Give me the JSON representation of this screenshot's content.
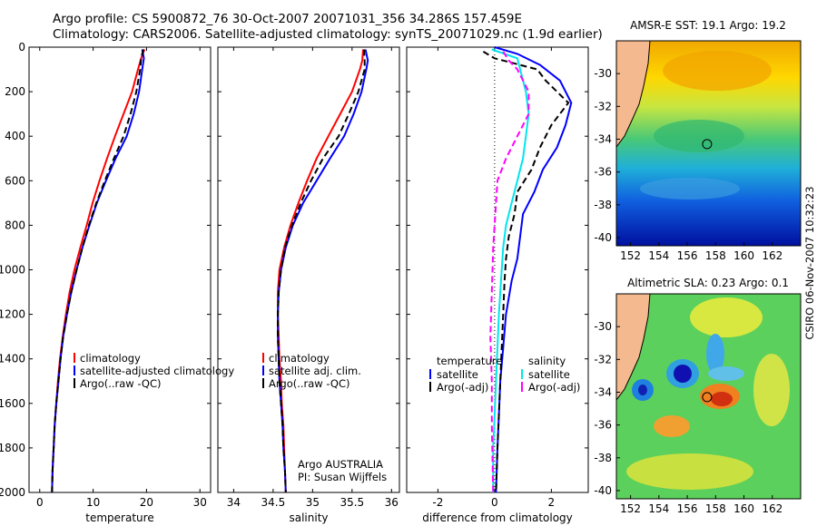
{
  "title_line1": "Argo profile: CS 5900872_76 30-Oct-2007 20071031_356 34.286S 157.459E",
  "title_line2": "Climatology: CARS2006. Satellite-adjusted climatology: synTS_20071029.nc (1.9d earlier)",
  "credit": "CSIRO 06-Nov-2007 10:32:23",
  "colors": {
    "climatology": "#ff0000",
    "satellite": "#0000ff",
    "argo": "#000000",
    "sal_satellite": "#00e5ee",
    "sal_argo": "#ff00ff",
    "land": "#f4b98e"
  },
  "chart_data": [
    {
      "type": "line",
      "xlabel": "temperature",
      "ylim": [
        2000,
        0
      ],
      "xlim": [
        -2,
        32
      ],
      "xticks": [
        "0",
        "10",
        "20",
        "30"
      ],
      "yticks": [
        "0",
        "200",
        "400",
        "600",
        "800",
        "1000",
        "1200",
        "1400",
        "1600",
        "1800",
        "2000"
      ],
      "legend": [
        "climatology",
        "satellite-adjusted climatology",
        "Argo(..raw -QC)"
      ],
      "series": [
        {
          "name": "climatology",
          "style": "solid",
          "color": "#ff0000",
          "points": [
            [
              19.6,
              10
            ],
            [
              19.0,
              50
            ],
            [
              18.4,
              100
            ],
            [
              17.3,
              200
            ],
            [
              15.7,
              300
            ],
            [
              14.1,
              400
            ],
            [
              12.6,
              500
            ],
            [
              11.2,
              600
            ],
            [
              9.9,
              700
            ],
            [
              8.8,
              800
            ],
            [
              7.6,
              900
            ],
            [
              6.5,
              1000
            ],
            [
              5.6,
              1100
            ],
            [
              4.9,
              1200
            ],
            [
              4.3,
              1300
            ],
            [
              3.8,
              1400
            ],
            [
              3.4,
              1500
            ],
            [
              3.1,
              1600
            ],
            [
              2.8,
              1700
            ],
            [
              2.6,
              1800
            ],
            [
              2.4,
              1900
            ],
            [
              2.3,
              2000
            ]
          ]
        },
        {
          "name": "satellite-adjusted climatology",
          "style": "solid",
          "color": "#0000ff",
          "points": [
            [
              19.2,
              10
            ],
            [
              19.5,
              50
            ],
            [
              19.2,
              100
            ],
            [
              18.6,
              200
            ],
            [
              17.6,
              300
            ],
            [
              16.3,
              400
            ],
            [
              14.2,
              500
            ],
            [
              12.4,
              600
            ],
            [
              10.7,
              700
            ],
            [
              9.3,
              800
            ],
            [
              8.0,
              900
            ],
            [
              6.9,
              1000
            ],
            [
              5.9,
              1100
            ],
            [
              5.1,
              1200
            ],
            [
              4.4,
              1300
            ],
            [
              3.9,
              1400
            ],
            [
              3.5,
              1500
            ],
            [
              3.1,
              1600
            ],
            [
              2.8,
              1700
            ],
            [
              2.6,
              1800
            ],
            [
              2.4,
              1900
            ],
            [
              2.3,
              2000
            ]
          ]
        },
        {
          "name": "Argo(..raw -QC)",
          "style": "dashed",
          "color": "#000000",
          "points": [
            [
              19.4,
              10
            ],
            [
              19.0,
              50
            ],
            [
              18.8,
              100
            ],
            [
              18.1,
              200
            ],
            [
              17.0,
              300
            ],
            [
              15.7,
              400
            ],
            [
              13.9,
              500
            ],
            [
              12.2,
              600
            ],
            [
              10.6,
              700
            ],
            [
              9.2,
              800
            ],
            [
              8.0,
              900
            ],
            [
              6.9,
              1000
            ],
            [
              5.9,
              1100
            ],
            [
              5.1,
              1200
            ],
            [
              4.4,
              1300
            ],
            [
              3.9,
              1400
            ],
            [
              3.5,
              1500
            ],
            [
              3.1,
              1600
            ],
            [
              2.8,
              1700
            ],
            [
              2.6,
              1800
            ],
            [
              2.4,
              1900
            ],
            [
              2.3,
              2000
            ]
          ]
        }
      ]
    },
    {
      "type": "line",
      "xlabel": "salinity",
      "ylim": [
        2000,
        0
      ],
      "xlim": [
        33.8,
        36.1
      ],
      "xticks": [
        "34",
        "34.5",
        "35",
        "35.5",
        "36"
      ],
      "legend": [
        "climatology",
        "satellite adj. clim.",
        "Argo(..raw -QC)"
      ],
      "annotation": [
        "Argo AUSTRALIA",
        "PI: Susan Wijffels"
      ],
      "series": [
        {
          "name": "climatology",
          "style": "solid",
          "color": "#ff0000",
          "points": [
            [
              35.64,
              10
            ],
            [
              35.63,
              60
            ],
            [
              35.6,
              100
            ],
            [
              35.5,
              200
            ],
            [
              35.35,
              300
            ],
            [
              35.2,
              400
            ],
            [
              35.05,
              500
            ],
            [
              34.93,
              600
            ],
            [
              34.82,
              700
            ],
            [
              34.72,
              800
            ],
            [
              34.64,
              900
            ],
            [
              34.58,
              1000
            ],
            [
              34.56,
              1100
            ],
            [
              34.56,
              1200
            ],
            [
              34.57,
              1300
            ],
            [
              34.58,
              1400
            ],
            [
              34.6,
              1500
            ],
            [
              34.61,
              1600
            ],
            [
              34.63,
              1700
            ],
            [
              34.64,
              1800
            ],
            [
              34.65,
              1900
            ],
            [
              34.66,
              2000
            ]
          ]
        },
        {
          "name": "satellite adj. clim.",
          "style": "solid",
          "color": "#0000ff",
          "points": [
            [
              35.67,
              10
            ],
            [
              35.7,
              60
            ],
            [
              35.68,
              100
            ],
            [
              35.62,
              200
            ],
            [
              35.52,
              300
            ],
            [
              35.4,
              400
            ],
            [
              35.22,
              500
            ],
            [
              35.05,
              600
            ],
            [
              34.88,
              700
            ],
            [
              34.75,
              800
            ],
            [
              34.66,
              900
            ],
            [
              34.6,
              1000
            ],
            [
              34.57,
              1100
            ],
            [
              34.56,
              1200
            ],
            [
              34.56,
              1300
            ],
            [
              34.57,
              1400
            ],
            [
              34.58,
              1500
            ],
            [
              34.6,
              1600
            ],
            [
              34.62,
              1700
            ],
            [
              34.63,
              1800
            ],
            [
              34.65,
              1900
            ],
            [
              34.66,
              2000
            ]
          ]
        },
        {
          "name": "Argo(..raw -QC)",
          "style": "dashed",
          "color": "#000000",
          "points": [
            [
              35.65,
              10
            ],
            [
              35.66,
              60
            ],
            [
              35.66,
              100
            ],
            [
              35.58,
              200
            ],
            [
              35.46,
              300
            ],
            [
              35.33,
              400
            ],
            [
              35.13,
              500
            ],
            [
              34.98,
              600
            ],
            [
              34.85,
              700
            ],
            [
              34.74,
              800
            ],
            [
              34.65,
              900
            ],
            [
              34.6,
              1000
            ],
            [
              34.57,
              1100
            ],
            [
              34.56,
              1200
            ],
            [
              34.56,
              1300
            ],
            [
              34.57,
              1400
            ],
            [
              34.58,
              1500
            ],
            [
              34.6,
              1600
            ],
            [
              34.62,
              1700
            ],
            [
              34.63,
              1800
            ],
            [
              34.65,
              1900
            ],
            [
              34.66,
              2000
            ]
          ]
        }
      ]
    },
    {
      "type": "line",
      "xlabel": "difference from climatology",
      "ylim": [
        2000,
        0
      ],
      "xlim": [
        -3.1,
        3.3
      ],
      "xticks": [
        "-2",
        "0",
        "2"
      ],
      "legend_left_title": "temperature",
      "legend_right_title": "salinity",
      "legend_left": [
        "satellite",
        "Argo(-adj)"
      ],
      "legend_right": [
        "satellite",
        "Argo(-adj)"
      ],
      "series": [
        {
          "name": "temperature satellite",
          "style": "solid",
          "color": "#0000ff",
          "points": [
            [
              0,
              0
            ],
            [
              0.8,
              30
            ],
            [
              1.6,
              80
            ],
            [
              2.3,
              150
            ],
            [
              2.7,
              250
            ],
            [
              2.5,
              350
            ],
            [
              2.2,
              450
            ],
            [
              1.7,
              550
            ],
            [
              1.4,
              650
            ],
            [
              1.0,
              750
            ],
            [
              0.9,
              850
            ],
            [
              0.8,
              950
            ],
            [
              0.6,
              1050
            ],
            [
              0.4,
              1200
            ],
            [
              0.3,
              1350
            ],
            [
              0.2,
              1500
            ],
            [
              0.15,
              1650
            ],
            [
              0.1,
              1800
            ],
            [
              0.05,
              2000
            ]
          ]
        },
        {
          "name": "temperature Argo(-adj)",
          "style": "dashed",
          "color": "#000000",
          "points": [
            [
              -0.4,
              20
            ],
            [
              0,
              50
            ],
            [
              1.5,
              100
            ],
            [
              1.8,
              150
            ],
            [
              2.6,
              250
            ],
            [
              2.0,
              350
            ],
            [
              1.6,
              450
            ],
            [
              1.3,
              550
            ],
            [
              0.8,
              650
            ],
            [
              0.7,
              750
            ],
            [
              0.5,
              850
            ],
            [
              0.4,
              950
            ],
            [
              0.35,
              1050
            ],
            [
              0.3,
              1200
            ],
            [
              0.25,
              1350
            ],
            [
              0.2,
              1500
            ],
            [
              0.15,
              1650
            ],
            [
              0.1,
              1800
            ],
            [
              0.05,
              2000
            ]
          ]
        },
        {
          "name": "salinity satellite",
          "style": "solid",
          "color": "#00e5ee",
          "points": [
            [
              -0.1,
              10
            ],
            [
              0.8,
              50
            ],
            [
              0.9,
              100
            ],
            [
              1.1,
              200
            ],
            [
              1.2,
              300
            ],
            [
              1.1,
              400
            ],
            [
              1.0,
              500
            ],
            [
              0.8,
              600
            ],
            [
              0.6,
              700
            ],
            [
              0.4,
              800
            ],
            [
              0.3,
              900
            ],
            [
              0.25,
              1000
            ],
            [
              0.2,
              1100
            ],
            [
              0.15,
              1200
            ],
            [
              0.1,
              1350
            ],
            [
              0.05,
              1500
            ],
            [
              0,
              1650
            ],
            [
              -0.05,
              1800
            ],
            [
              -0.05,
              2000
            ]
          ]
        },
        {
          "name": "salinity Argo(-adj)",
          "style": "dashed",
          "color": "#ff00ff",
          "points": [
            [
              0.3,
              20
            ],
            [
              0.5,
              60
            ],
            [
              0.8,
              100
            ],
            [
              1.2,
              200
            ],
            [
              1.2,
              300
            ],
            [
              0.8,
              400
            ],
            [
              0.4,
              500
            ],
            [
              0.1,
              600
            ],
            [
              0.05,
              700
            ],
            [
              -0.05,
              900
            ],
            [
              -0.1,
              1100
            ],
            [
              -0.15,
              1300
            ],
            [
              -0.1,
              1500
            ],
            [
              -0.1,
              1700
            ],
            [
              -0.05,
              2000
            ]
          ]
        }
      ]
    }
  ],
  "maps": [
    {
      "title": "AMSR-E SST: 19.1 Argo: 19.2",
      "xticks": [
        "152",
        "154",
        "156",
        "158",
        "160",
        "162"
      ],
      "yticks": [
        "-30",
        "-32",
        "-34",
        "-36",
        "-38",
        "-40"
      ],
      "xlim": [
        151.0,
        164.0
      ],
      "ylim": [
        -40.5,
        -28.0
      ],
      "marker": [
        157.4,
        -34.3
      ]
    },
    {
      "title": "Altimetric SLA: 0.23 Argo: 0.1",
      "xticks": [
        "152",
        "154",
        "156",
        "158",
        "160",
        "162"
      ],
      "yticks": [
        "-30",
        "-32",
        "-34",
        "-36",
        "-38",
        "-40"
      ],
      "xlim": [
        151.0,
        164.0
      ],
      "ylim": [
        -40.5,
        -28.0
      ],
      "marker": [
        157.4,
        -34.3
      ]
    }
  ]
}
